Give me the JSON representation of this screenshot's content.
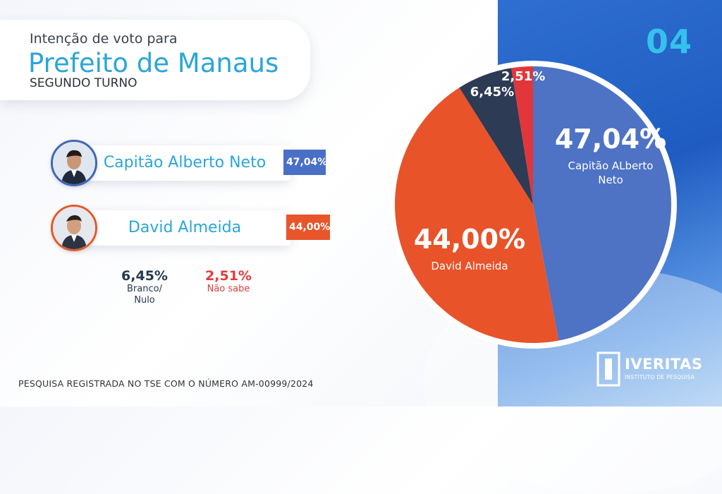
{
  "header": {
    "line1": "Intenção de voto para",
    "line2": "Prefeito de Manaus",
    "line3": "SEGUNDO TURNO"
  },
  "slide_number": "04",
  "candidates": [
    {
      "name": "Capitão Alberto Neto",
      "pct": "47,04%",
      "color": "#4a6fc6"
    },
    {
      "name": "David Almeida",
      "pct": "44,00%",
      "color": "#e8552b"
    }
  ],
  "others": [
    {
      "value": "6,45%",
      "label_line1": "Branco/",
      "label_line2": "Nulo",
      "color": "#263850"
    },
    {
      "value": "2,51%",
      "label_line1": "Não sabe",
      "label_line2": "",
      "color": "#e23b3b"
    }
  ],
  "footer": "PESQUISA REGISTRADA NO TSE COM O NÚMERO AM-00999/2024",
  "logo": {
    "name": "IVERITAS",
    "sub": "INSTITUTO DE PESQUISA"
  },
  "chart_data": {
    "type": "pie",
    "slices": [
      {
        "label": "Capitão ALberto Neto",
        "value": 47.04,
        "text": "47,04%",
        "color": "#4e72c4"
      },
      {
        "label": "David Almeida",
        "value": 44.0,
        "text": "44,00%",
        "color": "#e8532a"
      },
      {
        "label": "",
        "value": 6.45,
        "text": "6,45%",
        "color": "#2d3b55"
      },
      {
        "label": "",
        "value": 2.51,
        "text": "2,51%",
        "color": "#e3363a"
      }
    ]
  }
}
